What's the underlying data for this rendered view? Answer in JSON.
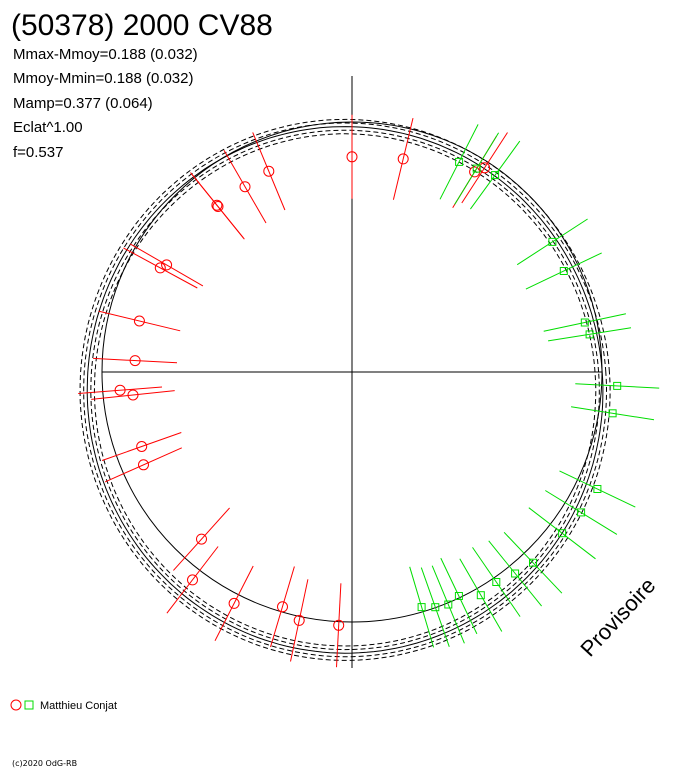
{
  "chart_data": {
    "type": "scatter",
    "title": "(50378) 2000 CV88",
    "stats": [
      "Mmax-Mmoy=0.188 (0.032)",
      "Mmoy-Mmin=0.188 (0.032)",
      "Mamp=0.377 (0.064)",
      "Eclat^1.00",
      "f=0.537"
    ],
    "legend": {
      "label": "Matthieu Conjat",
      "position": "bottom-left"
    },
    "copyright": "(c)2020 OdG-RB",
    "watermark": "Provisoire",
    "colors": {
      "series_red": "#ff0000",
      "series_green": "#00dd00",
      "axes": "#000000"
    },
    "series": [
      {
        "name": "red",
        "marker": "circle",
        "points": [
          [
            16.2,
            0.81
          ],
          [
            17.8,
            0.3
          ],
          [
            15.5,
            1.0
          ],
          [
            16.9,
            -0.43
          ],
          [
            17.2,
            0.33
          ],
          [
            13.3,
            -2.24
          ],
          [
            15.2,
            -2.09
          ],
          [
            13.6,
            -1.81
          ],
          [
            12.3,
            -1.45
          ],
          [
            12.4,
            -2.48
          ],
          [
            11.8,
            -2.73
          ],
          [
            11.1,
            -2.61
          ],
          [
            10.1,
            -2.66
          ],
          [
            10.0,
            -2.99
          ],
          [
            8.6,
            -2.95
          ],
          [
            8.6,
            -3.09
          ],
          [
            8.0,
            -3.0
          ],
          [
            7.5,
            -2.72
          ],
          [
            6.0,
            -2.9
          ],
          [
            5.1,
            -2.57
          ],
          [
            3.9,
            -1.28
          ],
          [
            3.8,
            -0.54
          ]
        ]
      },
      {
        "name": "green",
        "marker": "square",
        "points": [
          [
            21.9,
            1.56
          ],
          [
            21.5,
            1.24
          ],
          [
            20.9,
            1.08
          ],
          [
            20.6,
            0.77
          ],
          [
            20.3,
            0.4
          ],
          [
            20.0,
            0.64
          ],
          [
            19.7,
            -0.15
          ],
          [
            19.5,
            0.14
          ],
          [
            19.3,
            -0.04
          ],
          [
            19.1,
            -0.4
          ],
          [
            4.2,
            -1.18
          ],
          [
            3.9,
            -0.95
          ],
          [
            3.6,
            -0.55
          ],
          [
            1.7,
            -1.28
          ],
          [
            2.2,
            -0.92
          ],
          [
            0.8,
            -1.0
          ],
          [
            0.6,
            -0.79
          ],
          [
            23.8,
            1.3
          ],
          [
            23.4,
            1.15
          ],
          [
            22.3,
            1.82
          ]
        ]
      }
    ]
  }
}
